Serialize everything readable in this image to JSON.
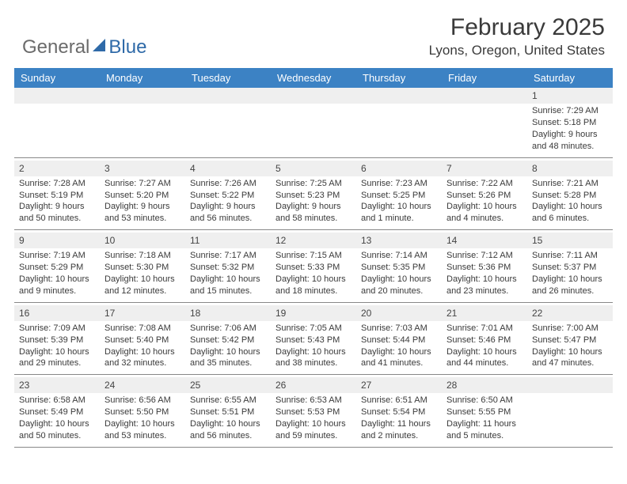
{
  "logo": {
    "general": "General",
    "blue": "Blue"
  },
  "title": "February 2025",
  "location": "Lyons, Oregon, United States",
  "header_bg": "#3c82c4",
  "header_text": "#ffffff",
  "daynum_bg": "#efefef",
  "divider_color": "#888888",
  "days": [
    "Sunday",
    "Monday",
    "Tuesday",
    "Wednesday",
    "Thursday",
    "Friday",
    "Saturday"
  ],
  "weeks": [
    [
      null,
      null,
      null,
      null,
      null,
      null,
      {
        "n": "1",
        "sr": "Sunrise: 7:29 AM",
        "ss": "Sunset: 5:18 PM",
        "d1": "Daylight: 9 hours",
        "d2": "and 48 minutes."
      }
    ],
    [
      {
        "n": "2",
        "sr": "Sunrise: 7:28 AM",
        "ss": "Sunset: 5:19 PM",
        "d1": "Daylight: 9 hours",
        "d2": "and 50 minutes."
      },
      {
        "n": "3",
        "sr": "Sunrise: 7:27 AM",
        "ss": "Sunset: 5:20 PM",
        "d1": "Daylight: 9 hours",
        "d2": "and 53 minutes."
      },
      {
        "n": "4",
        "sr": "Sunrise: 7:26 AM",
        "ss": "Sunset: 5:22 PM",
        "d1": "Daylight: 9 hours",
        "d2": "and 56 minutes."
      },
      {
        "n": "5",
        "sr": "Sunrise: 7:25 AM",
        "ss": "Sunset: 5:23 PM",
        "d1": "Daylight: 9 hours",
        "d2": "and 58 minutes."
      },
      {
        "n": "6",
        "sr": "Sunrise: 7:23 AM",
        "ss": "Sunset: 5:25 PM",
        "d1": "Daylight: 10 hours",
        "d2": "and 1 minute."
      },
      {
        "n": "7",
        "sr": "Sunrise: 7:22 AM",
        "ss": "Sunset: 5:26 PM",
        "d1": "Daylight: 10 hours",
        "d2": "and 4 minutes."
      },
      {
        "n": "8",
        "sr": "Sunrise: 7:21 AM",
        "ss": "Sunset: 5:28 PM",
        "d1": "Daylight: 10 hours",
        "d2": "and 6 minutes."
      }
    ],
    [
      {
        "n": "9",
        "sr": "Sunrise: 7:19 AM",
        "ss": "Sunset: 5:29 PM",
        "d1": "Daylight: 10 hours",
        "d2": "and 9 minutes."
      },
      {
        "n": "10",
        "sr": "Sunrise: 7:18 AM",
        "ss": "Sunset: 5:30 PM",
        "d1": "Daylight: 10 hours",
        "d2": "and 12 minutes."
      },
      {
        "n": "11",
        "sr": "Sunrise: 7:17 AM",
        "ss": "Sunset: 5:32 PM",
        "d1": "Daylight: 10 hours",
        "d2": "and 15 minutes."
      },
      {
        "n": "12",
        "sr": "Sunrise: 7:15 AM",
        "ss": "Sunset: 5:33 PM",
        "d1": "Daylight: 10 hours",
        "d2": "and 18 minutes."
      },
      {
        "n": "13",
        "sr": "Sunrise: 7:14 AM",
        "ss": "Sunset: 5:35 PM",
        "d1": "Daylight: 10 hours",
        "d2": "and 20 minutes."
      },
      {
        "n": "14",
        "sr": "Sunrise: 7:12 AM",
        "ss": "Sunset: 5:36 PM",
        "d1": "Daylight: 10 hours",
        "d2": "and 23 minutes."
      },
      {
        "n": "15",
        "sr": "Sunrise: 7:11 AM",
        "ss": "Sunset: 5:37 PM",
        "d1": "Daylight: 10 hours",
        "d2": "and 26 minutes."
      }
    ],
    [
      {
        "n": "16",
        "sr": "Sunrise: 7:09 AM",
        "ss": "Sunset: 5:39 PM",
        "d1": "Daylight: 10 hours",
        "d2": "and 29 minutes."
      },
      {
        "n": "17",
        "sr": "Sunrise: 7:08 AM",
        "ss": "Sunset: 5:40 PM",
        "d1": "Daylight: 10 hours",
        "d2": "and 32 minutes."
      },
      {
        "n": "18",
        "sr": "Sunrise: 7:06 AM",
        "ss": "Sunset: 5:42 PM",
        "d1": "Daylight: 10 hours",
        "d2": "and 35 minutes."
      },
      {
        "n": "19",
        "sr": "Sunrise: 7:05 AM",
        "ss": "Sunset: 5:43 PM",
        "d1": "Daylight: 10 hours",
        "d2": "and 38 minutes."
      },
      {
        "n": "20",
        "sr": "Sunrise: 7:03 AM",
        "ss": "Sunset: 5:44 PM",
        "d1": "Daylight: 10 hours",
        "d2": "and 41 minutes."
      },
      {
        "n": "21",
        "sr": "Sunrise: 7:01 AM",
        "ss": "Sunset: 5:46 PM",
        "d1": "Daylight: 10 hours",
        "d2": "and 44 minutes."
      },
      {
        "n": "22",
        "sr": "Sunrise: 7:00 AM",
        "ss": "Sunset: 5:47 PM",
        "d1": "Daylight: 10 hours",
        "d2": "and 47 minutes."
      }
    ],
    [
      {
        "n": "23",
        "sr": "Sunrise: 6:58 AM",
        "ss": "Sunset: 5:49 PM",
        "d1": "Daylight: 10 hours",
        "d2": "and 50 minutes."
      },
      {
        "n": "24",
        "sr": "Sunrise: 6:56 AM",
        "ss": "Sunset: 5:50 PM",
        "d1": "Daylight: 10 hours",
        "d2": "and 53 minutes."
      },
      {
        "n": "25",
        "sr": "Sunrise: 6:55 AM",
        "ss": "Sunset: 5:51 PM",
        "d1": "Daylight: 10 hours",
        "d2": "and 56 minutes."
      },
      {
        "n": "26",
        "sr": "Sunrise: 6:53 AM",
        "ss": "Sunset: 5:53 PM",
        "d1": "Daylight: 10 hours",
        "d2": "and 59 minutes."
      },
      {
        "n": "27",
        "sr": "Sunrise: 6:51 AM",
        "ss": "Sunset: 5:54 PM",
        "d1": "Daylight: 11 hours",
        "d2": "and 2 minutes."
      },
      {
        "n": "28",
        "sr": "Sunrise: 6:50 AM",
        "ss": "Sunset: 5:55 PM",
        "d1": "Daylight: 11 hours",
        "d2": "and 5 minutes."
      },
      null
    ]
  ]
}
